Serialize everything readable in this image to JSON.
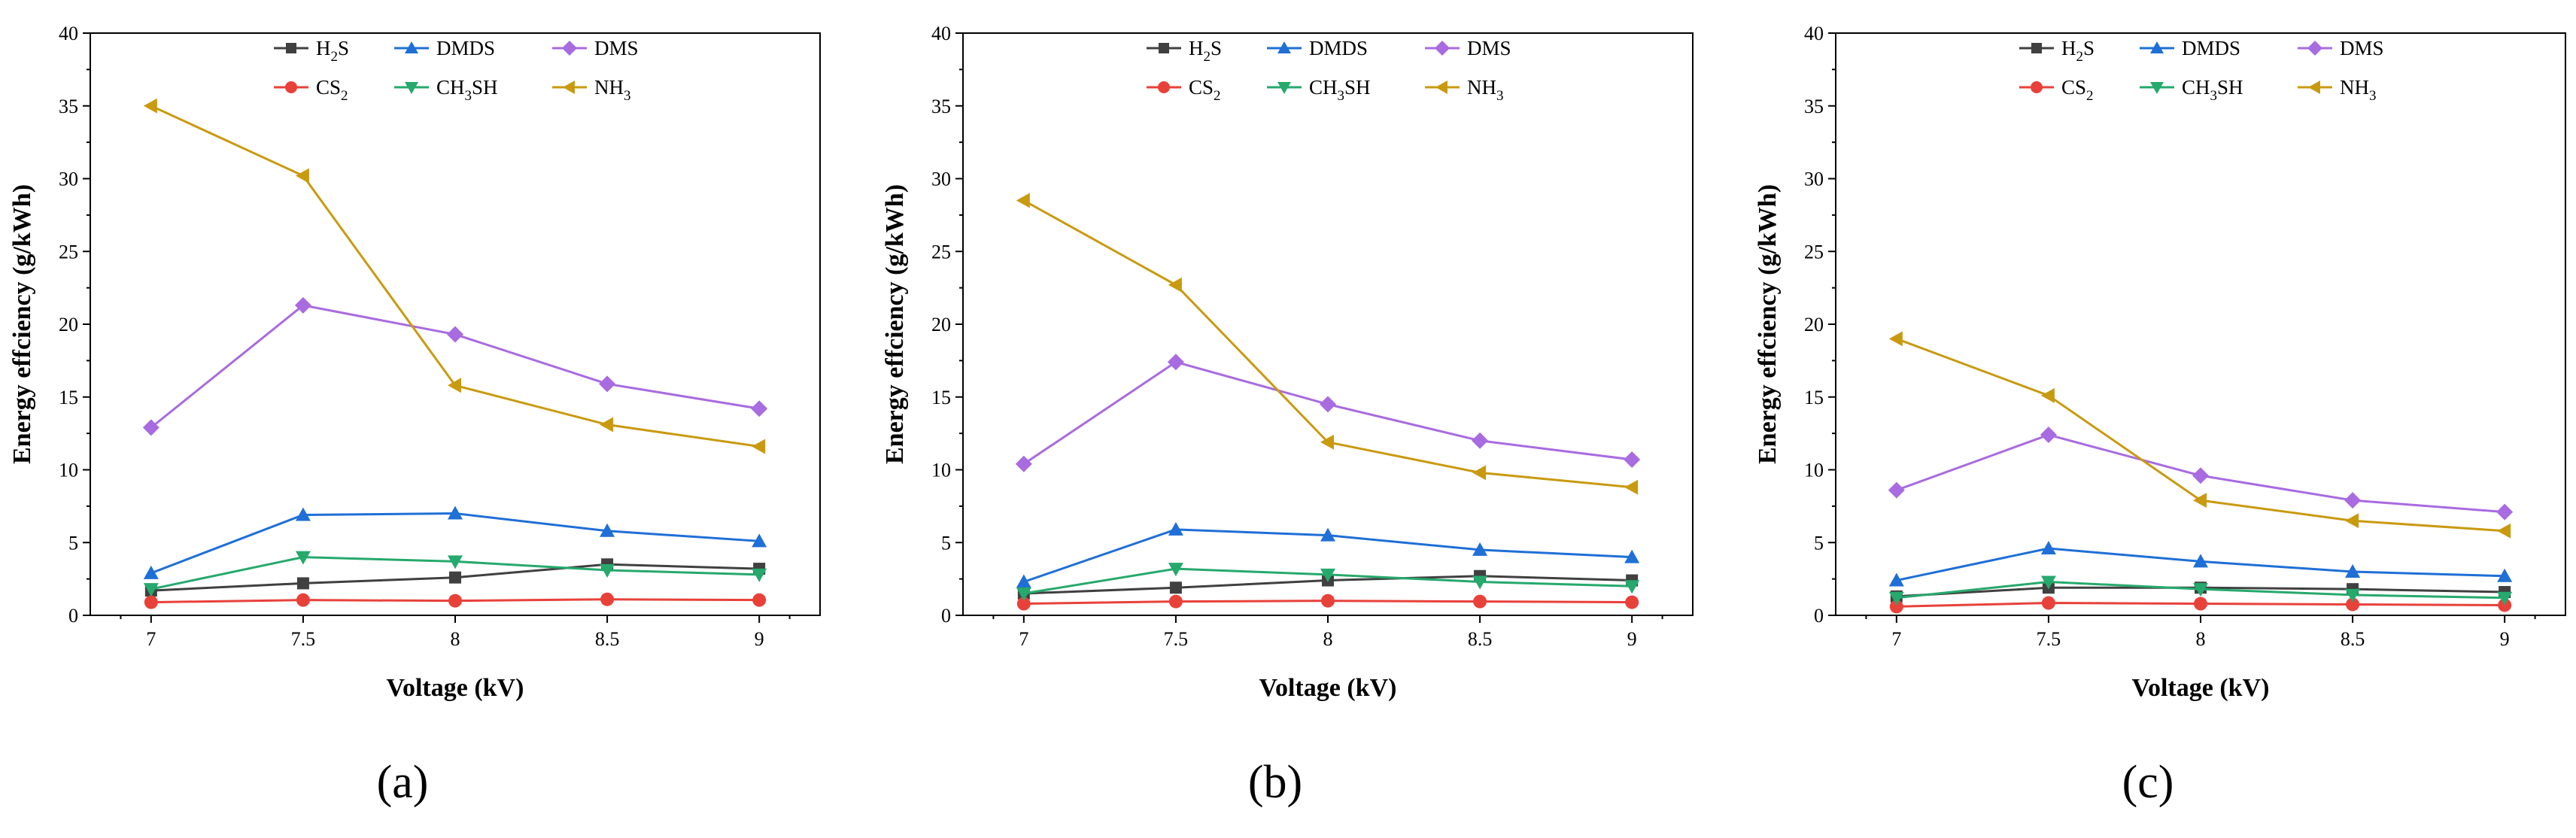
{
  "chart_data": [
    {
      "type": "line",
      "panel_label": "(a)",
      "xlabel": "Voltage (kV)",
      "ylabel": "Energy effciency (g/kWh)",
      "ylim": [
        0,
        40
      ],
      "yticks": [
        0,
        5,
        10,
        15,
        20,
        25,
        30,
        35,
        40
      ],
      "x": [
        7,
        7.5,
        8,
        8.5,
        9
      ],
      "x_tick_labels": [
        "7",
        "7.5",
        "8",
        "8.5",
        "9"
      ],
      "legend_position": "top-center",
      "series": [
        {
          "name": "H2S",
          "label_main": "H",
          "label_sub": "2",
          "label_tail": "S",
          "color": "#404040",
          "marker": "square",
          "values": [
            1.7,
            2.2,
            2.6,
            3.5,
            3.2
          ]
        },
        {
          "name": "DMDS",
          "label_main": "DMDS",
          "label_sub": "",
          "label_tail": "",
          "color": "#1f6fd6",
          "marker": "triangle-up",
          "values": [
            2.9,
            6.9,
            7.0,
            5.8,
            5.1
          ]
        },
        {
          "name": "DMS",
          "label_main": "DMS",
          "label_sub": "",
          "label_tail": "",
          "color": "#a86be0",
          "marker": "diamond",
          "values": [
            12.9,
            21.3,
            19.3,
            15.9,
            14.2
          ]
        },
        {
          "name": "CS2",
          "label_main": "CS",
          "label_sub": "2",
          "label_tail": "",
          "color": "#e8413a",
          "marker": "circle",
          "values": [
            0.9,
            1.05,
            1.0,
            1.1,
            1.05
          ]
        },
        {
          "name": "CH3SH",
          "label_main": "CH",
          "label_sub": "3",
          "label_tail": "SH",
          "color": "#26a96c",
          "marker": "triangle-down",
          "values": [
            1.8,
            4.0,
            3.7,
            3.1,
            2.8
          ]
        },
        {
          "name": "NH3",
          "label_main": "NH",
          "label_sub": "3",
          "label_tail": "",
          "color": "#c99a10",
          "marker": "triangle-left",
          "values": [
            35.0,
            30.2,
            15.8,
            13.1,
            11.6
          ]
        }
      ]
    },
    {
      "type": "line",
      "panel_label": "(b)",
      "xlabel": "Voltage (kV)",
      "ylabel": "Energy effciency (g/kWh)",
      "ylim": [
        0,
        40
      ],
      "yticks": [
        0,
        5,
        10,
        15,
        20,
        25,
        30,
        35,
        40
      ],
      "x": [
        7,
        7.5,
        8,
        8.5,
        9
      ],
      "x_tick_labels": [
        "7",
        "7.5",
        "8",
        "8.5",
        "9"
      ],
      "legend_position": "top-center",
      "series": [
        {
          "name": "H2S",
          "label_main": "H",
          "label_sub": "2",
          "label_tail": "S",
          "color": "#404040",
          "marker": "square",
          "values": [
            1.5,
            1.9,
            2.4,
            2.7,
            2.4
          ]
        },
        {
          "name": "DMDS",
          "label_main": "DMDS",
          "label_sub": "",
          "label_tail": "",
          "color": "#1f6fd6",
          "marker": "triangle-up",
          "values": [
            2.3,
            5.9,
            5.5,
            4.5,
            4.0
          ]
        },
        {
          "name": "DMS",
          "label_main": "DMS",
          "label_sub": "",
          "label_tail": "",
          "color": "#a86be0",
          "marker": "diamond",
          "values": [
            10.4,
            17.4,
            14.5,
            12.0,
            10.7
          ]
        },
        {
          "name": "CS2",
          "label_main": "CS",
          "label_sub": "2",
          "label_tail": "",
          "color": "#e8413a",
          "marker": "circle",
          "values": [
            0.8,
            0.95,
            1.0,
            0.95,
            0.9
          ]
        },
        {
          "name": "CH3SH",
          "label_main": "CH",
          "label_sub": "3",
          "label_tail": "SH",
          "color": "#26a96c",
          "marker": "triangle-down",
          "values": [
            1.5,
            3.2,
            2.8,
            2.3,
            2.0
          ]
        },
        {
          "name": "NH3",
          "label_main": "NH",
          "label_sub": "3",
          "label_tail": "",
          "color": "#c99a10",
          "marker": "triangle-left",
          "values": [
            28.5,
            22.7,
            11.9,
            9.8,
            8.8
          ]
        }
      ]
    },
    {
      "type": "line",
      "panel_label": "(c)",
      "xlabel": "Voltage (kV)",
      "ylabel": "Energy effciency (g/kWh)",
      "ylim": [
        0,
        40
      ],
      "yticks": [
        0,
        5,
        10,
        15,
        20,
        25,
        30,
        35,
        40
      ],
      "x": [
        7,
        7.5,
        8,
        8.5,
        9
      ],
      "x_tick_labels": [
        "7",
        "7.5",
        "8",
        "8.5",
        "9"
      ],
      "legend_position": "top-center",
      "series": [
        {
          "name": "H2S",
          "label_main": "H",
          "label_sub": "2",
          "label_tail": "S",
          "color": "#404040",
          "marker": "square",
          "values": [
            1.3,
            1.9,
            1.9,
            1.8,
            1.6
          ]
        },
        {
          "name": "DMDS",
          "label_main": "DMDS",
          "label_sub": "",
          "label_tail": "",
          "color": "#1f6fd6",
          "marker": "triangle-up",
          "values": [
            2.4,
            4.6,
            3.7,
            3.0,
            2.7
          ]
        },
        {
          "name": "DMS",
          "label_main": "DMS",
          "label_sub": "",
          "label_tail": "",
          "color": "#a86be0",
          "marker": "diamond",
          "values": [
            8.6,
            12.4,
            9.6,
            7.9,
            7.1
          ]
        },
        {
          "name": "CS2",
          "label_main": "CS",
          "label_sub": "2",
          "label_tail": "",
          "color": "#e8413a",
          "marker": "circle",
          "values": [
            0.6,
            0.85,
            0.8,
            0.75,
            0.7
          ]
        },
        {
          "name": "CH3SH",
          "label_main": "CH",
          "label_sub": "3",
          "label_tail": "SH",
          "color": "#26a96c",
          "marker": "triangle-down",
          "values": [
            1.2,
            2.3,
            1.8,
            1.4,
            1.2
          ]
        },
        {
          "name": "NH3",
          "label_main": "NH",
          "label_sub": "3",
          "label_tail": "",
          "color": "#c99a10",
          "marker": "triangle-left",
          "values": [
            19.0,
            15.1,
            7.9,
            6.5,
            5.8
          ]
        }
      ]
    }
  ]
}
